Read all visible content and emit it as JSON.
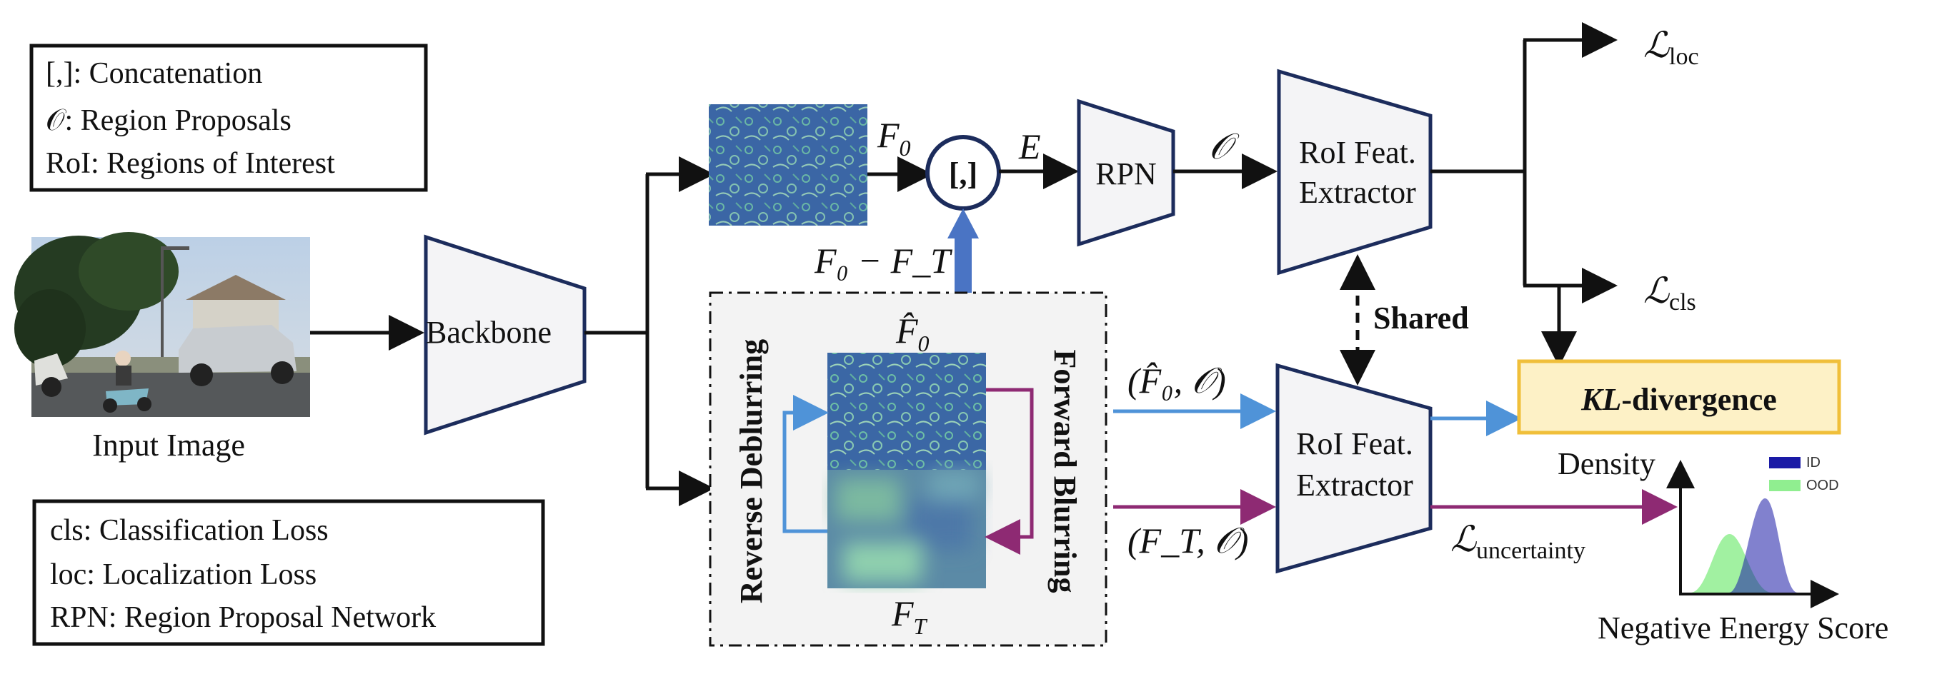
{
  "legend_top": {
    "line1": "[,]: Concatenation",
    "line2": "𝒪: Region Proposals",
    "line3": "RoI: Regions of Interest"
  },
  "legend_bottom": {
    "line1": "cls: Classification Loss",
    "line2": "loc: Localization Loss",
    "line3": "RPN: Region Proposal Network"
  },
  "input_image": {
    "caption": "Input Image"
  },
  "backbone": {
    "label": "Backbone"
  },
  "concat": {
    "label": "[,]"
  },
  "rpn": {
    "label": "RPN"
  },
  "roi_top": {
    "line1": "RoI Feat.",
    "line2": "Extractor"
  },
  "roi_bottom": {
    "line1": "RoI Feat.",
    "line2": "Extractor"
  },
  "shared": {
    "label": "Shared"
  },
  "kl": {
    "label_italic": "KL",
    "label_rest": "-divergence"
  },
  "math": {
    "F0": "F",
    "F0_sub": "0",
    "E": "E",
    "O": "𝒪",
    "F0_minus_FT": "F₀ − F_T",
    "F0hat": "F̂",
    "FT": "F",
    "FT_sub": "T",
    "pair_hat": "(F̂₀, 𝒪)",
    "pair_T": "(F_T, 𝒪)",
    "L": "ℒ",
    "loc_sub": "loc",
    "cls_sub": "cls",
    "unc_sub": "uncertainty"
  },
  "side_labels": {
    "reverse": "Reverse Deblurring",
    "forward": "Forward Blurring"
  },
  "density_plot": {
    "ylabel": "Density",
    "xlabel": "Negative Energy Score",
    "legend_id": "ID",
    "legend_ood": "OOD",
    "id_color": "#1a1aa6",
    "ood_color": "#90ee90"
  },
  "colors": {
    "navy": "#1c2c5c",
    "blue_arrow": "#4f93d8",
    "concat_arrow": "#4a74c4",
    "purple_arrow": "#8e2a73",
    "kl_fill": "#fdf1c6",
    "kl_border": "#f0bf3a",
    "trap_fill": "#f4f4f6",
    "dashed_bg": "#f3f3f3"
  }
}
